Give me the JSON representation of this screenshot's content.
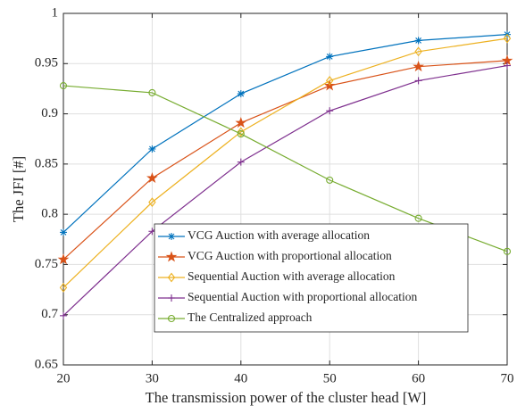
{
  "chart_data": {
    "type": "line",
    "xlabel": "The transmission power of the cluster head [W]",
    "ylabel": "The JFI [#]",
    "x": [
      20,
      30,
      40,
      50,
      60,
      70
    ],
    "series": [
      {
        "name": "VCG Auction with average allocation",
        "color": "#0072BD",
        "marker": "asterisk",
        "values": [
          0.782,
          0.865,
          0.92,
          0.957,
          0.973,
          0.979
        ]
      },
      {
        "name": "VCG Auction with proportional allocation",
        "color": "#D95319",
        "marker": "pentagram",
        "values": [
          0.755,
          0.836,
          0.891,
          0.928,
          0.947,
          0.953
        ]
      },
      {
        "name": "Sequential Auction with average allocation",
        "color": "#EDB120",
        "marker": "diamond",
        "values": [
          0.727,
          0.812,
          0.882,
          0.933,
          0.962,
          0.975
        ]
      },
      {
        "name": "Sequential Auction with proportional allocation",
        "color": "#7E2F8E",
        "marker": "plus",
        "values": [
          0.699,
          0.783,
          0.852,
          0.903,
          0.933,
          0.948
        ]
      },
      {
        "name": "The Centralized approach",
        "color": "#77AC30",
        "marker": "circle",
        "values": [
          0.928,
          0.921,
          0.88,
          0.834,
          0.796,
          0.763
        ]
      }
    ],
    "xlim": [
      20,
      70
    ],
    "xticks": [
      20,
      30,
      40,
      50,
      60,
      70
    ],
    "ylim": [
      0.65,
      1
    ],
    "yticks": [
      0.65,
      0.7,
      0.75,
      0.8,
      0.85,
      0.9,
      0.95,
      1
    ],
    "grid": true,
    "legend": "lower right"
  }
}
